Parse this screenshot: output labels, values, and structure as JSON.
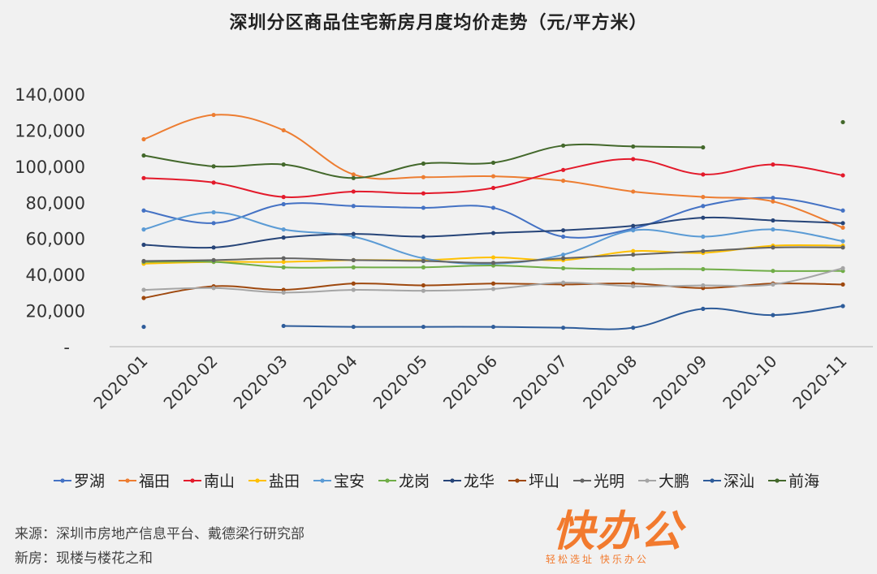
{
  "title": "深圳分区商品住宅新房月度均价走势（元/平方米）",
  "footnotes": {
    "source": "来源：深圳市房地产信息平台、戴德梁行研究部",
    "note": "新房：现楼与楼花之和"
  },
  "logo": {
    "main": "快办公",
    "sub": "轻松选址 快乐办公"
  },
  "chart_data": {
    "type": "line",
    "title": "深圳分区商品住宅新房月度均价走势（元/平方米）",
    "categories": [
      "2020-01",
      "2020-02",
      "2020-03",
      "2020-04",
      "2020-05",
      "2020-06",
      "2020-07",
      "2020-08",
      "2020-09",
      "2020-10",
      "2020-11"
    ],
    "y_ticks": [
      "-",
      "20,000",
      "40,000",
      "60,000",
      "80,000",
      "100,000",
      "120,000",
      "140,000"
    ],
    "ylim": [
      0,
      140000
    ],
    "legend_position": "bottom",
    "grid": false,
    "series": [
      {
        "name": "罗湖",
        "color": "#4472c4",
        "values": [
          75500,
          68500,
          79000,
          78000,
          77000,
          77000,
          61000,
          65500,
          78000,
          82500,
          75500
        ]
      },
      {
        "name": "福田",
        "color": "#ed7d31",
        "values": [
          115000,
          128500,
          120000,
          95500,
          94000,
          94500,
          92000,
          86000,
          83000,
          80500,
          66000
        ]
      },
      {
        "name": "南山",
        "color": "#e31a2b",
        "values": [
          93500,
          91000,
          83000,
          86000,
          85000,
          88000,
          98000,
          104000,
          95500,
          101000,
          95000
        ]
      },
      {
        "name": "盐田",
        "color": "#ffc000",
        "values": [
          46000,
          47000,
          47000,
          48000,
          48000,
          49500,
          48000,
          53000,
          52000,
          56000,
          56000
        ]
      },
      {
        "name": "宝安",
        "color": "#5b9bd5",
        "values": [
          65000,
          74500,
          65000,
          61000,
          49000,
          46000,
          51000,
          64500,
          61000,
          65000,
          58500
        ]
      },
      {
        "name": "龙岗",
        "color": "#70ad47",
        "values": [
          47000,
          47000,
          44000,
          44000,
          44000,
          45000,
          43500,
          43000,
          43000,
          42000,
          42000
        ]
      },
      {
        "name": "龙华",
        "color": "#264478",
        "values": [
          56500,
          55000,
          60500,
          62500,
          61000,
          63000,
          64500,
          67000,
          71500,
          70000,
          68500
        ]
      },
      {
        "name": "坪山",
        "color": "#9e480e",
        "values": [
          27000,
          33500,
          31500,
          35000,
          34000,
          35000,
          34500,
          35000,
          32500,
          35000,
          34500
        ]
      },
      {
        "name": "光明",
        "color": "#636363",
        "values": [
          47500,
          48000,
          49000,
          48000,
          47500,
          46500,
          49000,
          51000,
          53000,
          55000,
          55000
        ]
      },
      {
        "name": "大鹏",
        "color": "#a5a5a5",
        "values": [
          31500,
          32500,
          30000,
          31500,
          31000,
          32000,
          35500,
          33500,
          34000,
          34500,
          43500
        ]
      },
      {
        "name": "深汕",
        "color": "#2e5c9a",
        "values": [
          11000,
          null,
          11500,
          11000,
          11000,
          11000,
          10500,
          10500,
          21000,
          17500,
          22500
        ]
      },
      {
        "name": "前海",
        "color": "#43682b",
        "values": [
          106000,
          100000,
          101000,
          93500,
          101500,
          102000,
          111500,
          111000,
          110500,
          null,
          124500
        ]
      }
    ]
  }
}
